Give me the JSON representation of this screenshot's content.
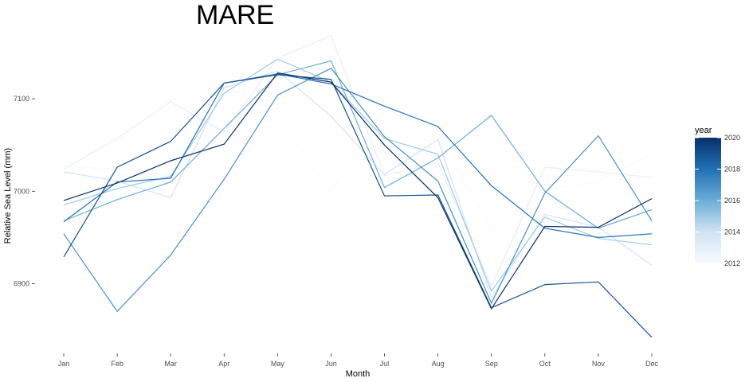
{
  "chart_data": {
    "type": "line",
    "title": "MARE",
    "xlabel": "Month",
    "ylabel": "Relative Sea Level (mm)",
    "categories": [
      "Jan",
      "Feb",
      "Mar",
      "Apr",
      "May",
      "Jun",
      "Jul",
      "Aug",
      "Sep",
      "Oct",
      "Nov",
      "Dec"
    ],
    "yticks": [
      6900,
      7000,
      7100
    ],
    "ylim": [
      6835,
      7175
    ],
    "grid": false,
    "legend": {
      "title": "year",
      "position": "right",
      "type": "colorbar",
      "range": [
        2012,
        2020
      ],
      "ticks": [
        2012,
        2014,
        2016,
        2018,
        2020
      ],
      "color_low": "#f7fbff",
      "color_high": "#08306b"
    },
    "series": [
      {
        "year": 2012,
        "values": [
          7027,
          7024,
          7017,
          7014,
          7080,
          6999,
          7090,
          7063,
          6958,
          7001,
          7011,
          7040
        ]
      },
      {
        "year": 2013,
        "values": [
          7024,
          7057,
          7097,
          7064,
          7144,
          7168,
          7017,
          7031,
          6897,
          7026,
          7021,
          7015
        ]
      },
      {
        "year": 2014,
        "values": [
          7021,
          7011,
          6993,
          7112,
          7130,
          7081,
          7018,
          7056,
          6885,
          6975,
          6961,
          6920
        ]
      },
      {
        "year": 2015,
        "values": [
          6985,
          7003,
          7016,
          7106,
          7143,
          7118,
          7057,
          7040,
          6892,
          6972,
          6949,
          6942
        ]
      },
      {
        "year": 2016,
        "values": [
          6968,
          6991,
          7010,
          7068,
          7126,
          7141,
          7004,
          7036,
          7082,
          7000,
          6960,
          6980
        ]
      },
      {
        "year": 2017,
        "values": [
          6954,
          6870,
          6931,
          7013,
          7104,
          7133,
          7059,
          7011,
          6879,
          6998,
          7060,
          6968
        ]
      },
      {
        "year": 2018,
        "values": [
          6967,
          7010,
          7014,
          7117,
          7127,
          7116,
          7092,
          7070,
          7006,
          6960,
          6950,
          6954
        ]
      },
      {
        "year": 2019,
        "values": [
          6929,
          7026,
          7054,
          7117,
          7126,
          7121,
          6995,
          6996,
          6874,
          6899,
          6902,
          6842
        ]
      },
      {
        "year": 2020,
        "values": [
          6990,
          7009,
          7033,
          7051,
          7128,
          7118,
          7050,
          6993,
          6873,
          6962,
          6961,
          6992
        ]
      }
    ]
  }
}
